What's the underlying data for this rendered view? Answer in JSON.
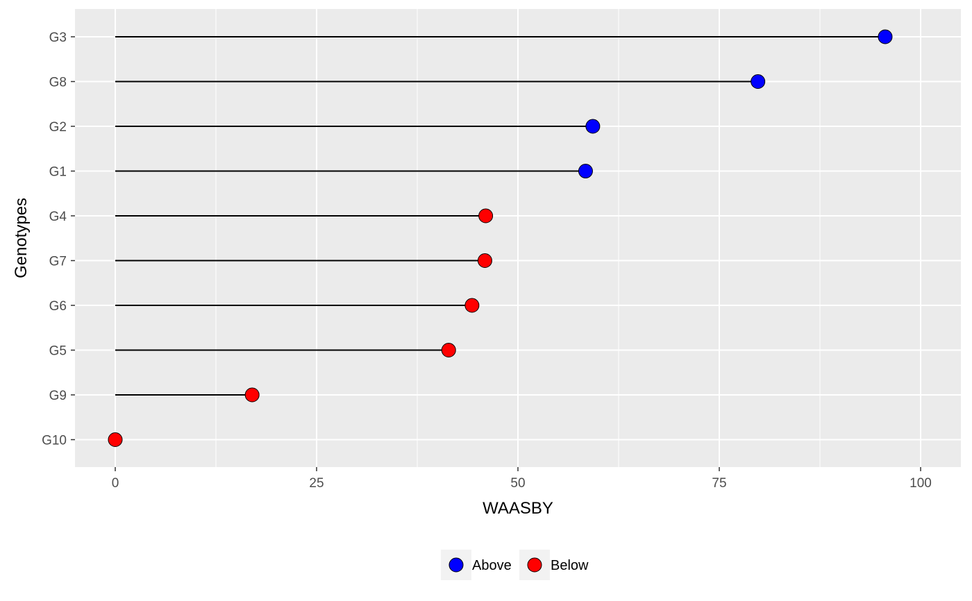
{
  "chart_data": {
    "type": "lollipop",
    "categories": [
      "G3",
      "G8",
      "G2",
      "G1",
      "G4",
      "G7",
      "G6",
      "G5",
      "G9",
      "G10"
    ],
    "values": [
      95.6,
      79.8,
      59.3,
      58.4,
      46.0,
      45.9,
      44.3,
      41.4,
      17.0,
      0.0
    ],
    "groups": [
      "Above",
      "Above",
      "Above",
      "Above",
      "Below",
      "Below",
      "Below",
      "Below",
      "Below",
      "Below"
    ],
    "xlabel": "WAASBY",
    "ylabel": "Genotypes",
    "xlim": [
      0,
      100
    ],
    "xticks": [
      0,
      25,
      50,
      75,
      100
    ],
    "grid": true,
    "legend": {
      "position": "bottom",
      "entries": [
        {
          "label": "Above",
          "color": "#0000ff"
        },
        {
          "label": "Below",
          "color": "#ff0000"
        }
      ]
    }
  },
  "colors": {
    "panel_background": "#ebebeb",
    "grid_major": "#ffffff",
    "segment": "#000000",
    "tick_text": "#4d4d4d",
    "legend_key_background": "#f2f2f2"
  }
}
